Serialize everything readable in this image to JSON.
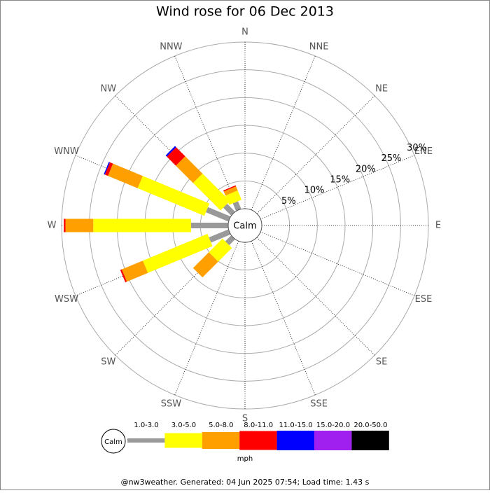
{
  "chart_data": {
    "type": "windrose",
    "title": "Wind rose for 06 Dec 2013",
    "directions": [
      "N",
      "NNE",
      "NE",
      "ENE",
      "E",
      "ESE",
      "SE",
      "SSE",
      "S",
      "SSW",
      "SW",
      "WSW",
      "W",
      "WNW",
      "NW",
      "NNW"
    ],
    "center_label": "Calm",
    "rlim": [
      0,
      30
    ],
    "rticks": [
      {
        "value": 5,
        "label": "5%"
      },
      {
        "value": 10,
        "label": "10%"
      },
      {
        "value": 15,
        "label": "15%"
      },
      {
        "value": 20,
        "label": "20%"
      },
      {
        "value": 25,
        "label": "25%"
      },
      {
        "value": 30,
        "label": "30%"
      }
    ],
    "series": [
      {
        "name": "1.0-3.0",
        "color": "#999999",
        "values": [
          0,
          0,
          0,
          0,
          0,
          0,
          0,
          0,
          0,
          0,
          1.5,
          3.8,
          6.7,
          4.4,
          2.0,
          1.5
        ]
      },
      {
        "name": "3.0-5.0",
        "color": "#ffff00",
        "values": [
          0,
          0,
          0,
          0,
          0,
          0,
          0,
          0,
          0,
          0,
          3.5,
          12.6,
          17.6,
          13.0,
          7.0,
          1.8
        ]
      },
      {
        "name": "5.0-8.0",
        "color": "#ff9f00",
        "values": [
          0,
          0,
          0,
          0,
          0,
          0,
          0,
          0,
          0,
          0,
          4.0,
          4.1,
          5.0,
          5.8,
          4.4,
          0.8
        ]
      },
      {
        "name": "8.0-11.0",
        "color": "#ff0000",
        "values": [
          0,
          0,
          0,
          0,
          0,
          0,
          0,
          0,
          0,
          0,
          0,
          0.3,
          0.3,
          0.6,
          2.3,
          0.2
        ]
      },
      {
        "name": "11.0-15.0",
        "color": "#0000ff",
        "values": [
          0,
          0,
          0,
          0,
          0,
          0,
          0,
          0,
          0,
          0,
          0,
          0,
          0,
          0.2,
          0.3,
          0
        ]
      },
      {
        "name": "15.0-20.0",
        "color": "#a020f0",
        "values": [
          0,
          0,
          0,
          0,
          0,
          0,
          0,
          0,
          0,
          0,
          0,
          0,
          0,
          0,
          0,
          0
        ]
      },
      {
        "name": "20.0-50.0",
        "color": "#000000",
        "values": [
          0,
          0,
          0,
          0,
          0,
          0,
          0,
          0,
          0,
          0,
          0,
          0,
          0,
          0,
          0,
          0
        ]
      }
    ],
    "legend_calm": "Calm",
    "legend_unit": "mph",
    "footer": "@nw3weather. Generated: 04 Jun 2025 07:54; Load time: 1.43 s"
  }
}
